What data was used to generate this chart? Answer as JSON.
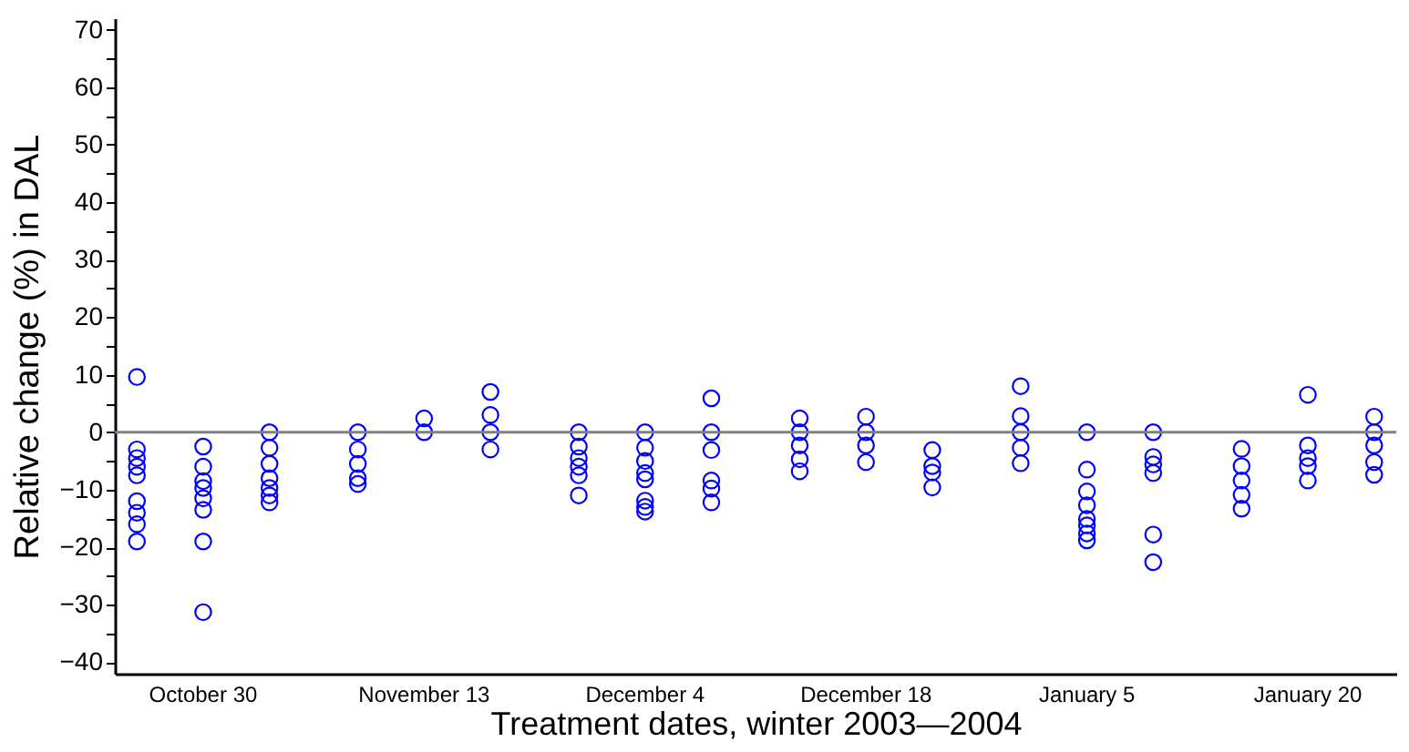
{
  "chart_data": {
    "type": "scatter",
    "xlabel": "Treatment dates, winter 2003—2004",
    "ylabel": "Relative change (%) in DAL",
    "categories": [
      "October 30",
      "November 13",
      "December 4",
      "December 18",
      "January 5",
      "January 20"
    ],
    "ylim": [
      -42,
      72
    ],
    "yticks": [
      -40,
      {
        "value": -35,
        "label": null
      },
      -30,
      {
        "value": -25,
        "label": null
      },
      -20,
      {
        "value": -15,
        "label": null
      },
      -10,
      {
        "value": -5,
        "label": null
      },
      0,
      {
        "value": 5,
        "label": null
      },
      10,
      {
        "value": 15,
        "label": null
      },
      20,
      {
        "value": 25,
        "label": null
      },
      30,
      {
        "value": 35,
        "label": null
      },
      40,
      {
        "value": 45,
        "label": null
      },
      50,
      {
        "value": 55,
        "label": null
      },
      60,
      {
        "value": 65,
        "label": null
      },
      70
    ],
    "grid": false,
    "marker": "circle",
    "ref_lines": [
      {
        "axis": "y",
        "value": 0,
        "color": "#808080"
      }
    ],
    "series": [
      {
        "color": "#0000ff",
        "x": [
          "October 30",
          "October 30",
          "October 30",
          "October 30",
          "October 30",
          "October 30",
          "October 30",
          "October 30",
          "October 30",
          "October 30",
          "October 30",
          "November 13",
          "November 13",
          "November 13",
          "November 13",
          "November 13",
          "December 4",
          "December 4",
          "December 4",
          "December 4",
          "December 4",
          "December 4",
          "December 4",
          "December 18",
          "December 18",
          "December 18",
          "December 18",
          "December 18",
          "January 5",
          "January 5",
          "January 5",
          "January 5",
          "January 5",
          "January 5",
          "January 20",
          "January 20",
          "January 20",
          "January 20",
          "January 20",
          "January 20"
        ],
        "values": [
          9.6,
          -3,
          -4.5,
          -6,
          -7.5,
          -12,
          null,
          -14,
          null,
          -16,
          -19,
          0,
          -3,
          -5.5,
          -8,
          -9,
          0,
          -2.5,
          -4.5,
          null,
          -6,
          -7.5,
          -11,
          2.4,
          0,
          -2.3,
          -4.7,
          -6.8,
          8,
          2.8,
          0,
          -2.7,
          -5.4,
          null,
          -2.9,
          null,
          -5.9,
          -8.4,
          -10.9,
          -13.3
        ]
      },
      {
        "color": "#0000ff",
        "x": [
          "October 30",
          "October 30",
          "October 30",
          "October 30",
          "October 30",
          "October 30",
          "October 30",
          "October 30",
          "October 30",
          "October 30",
          "November 13",
          "November 13",
          "November 13",
          "November 13",
          "December 4",
          "December 4",
          "December 4",
          "December 4",
          "December 4",
          "December 4",
          "December 4",
          "December 4",
          "December 18",
          "December 18",
          "December 18",
          "December 18",
          "January 5",
          "January 5",
          "January 5",
          "January 5",
          "January 5",
          "January 5",
          "January 5",
          "January 5",
          "January 5",
          "January 20",
          "January 20",
          "January 20",
          "January 20",
          "January 20",
          "January 20"
        ],
        "values": [
          -2.5,
          null,
          -6,
          -8.5,
          -9.7,
          null,
          -11.5,
          -13.5,
          -19,
          -31.3,
          2.4,
          null,
          0,
          null,
          0,
          -2.7,
          -5,
          -7.1,
          -8.2,
          -11.9,
          -13,
          -13.8,
          2.7,
          0,
          -2.3,
          -5.2,
          0,
          -6.5,
          null,
          -10.3,
          -12.7,
          -15.1,
          -16.2,
          -17.6,
          -18.8,
          6.5,
          -2.3,
          null,
          -4.5,
          -5.9,
          -8.4
        ]
      },
      {
        "color": "#0000ff",
        "x": [
          "October 30",
          "October 30",
          "October 30",
          "October 30",
          "October 30",
          "October 30",
          "October 30",
          "October 30",
          "October 30",
          "November 13",
          "November 13",
          "November 13",
          "November 13",
          "December 4",
          "December 4",
          "December 4",
          "December 4",
          "December 4",
          "December 4",
          "December 18",
          "December 18",
          "December 18",
          "December 18",
          "December 18",
          "January 5",
          "January 5",
          "January 5",
          "January 5",
          "January 5",
          "January 5",
          "January 5",
          "January 20",
          "January 20",
          "January 20",
          "January 20",
          "January 20",
          "January 20"
        ],
        "values": [
          0,
          -2.7,
          -5.5,
          null,
          -8,
          -9.7,
          -11,
          null,
          -12.2,
          7,
          3,
          0,
          -3,
          5.9,
          0,
          -3.1,
          -8.4,
          -9.8,
          -12.2,
          -3.1,
          -5.9,
          -7,
          null,
          -9.6,
          0,
          -4.3,
          -5.6,
          null,
          -7.1,
          -17.8,
          -22.6,
          2.7,
          0,
          -2.3,
          -5.2,
          -7.4,
          null
        ]
      }
    ]
  }
}
